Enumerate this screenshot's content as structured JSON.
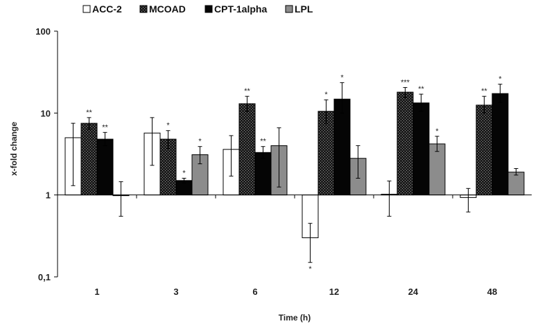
{
  "chart_data": {
    "type": "bar",
    "xlabel": "Time (h)",
    "ylabel": "x-fold change",
    "yscale": "log",
    "ylim": [
      0.1,
      100
    ],
    "yticks": [
      "0,1",
      "1",
      "10",
      "100"
    ],
    "categories": [
      "1",
      "3",
      "6",
      "12",
      "24",
      "48"
    ],
    "legend_position": "top-left",
    "colors": {
      "ACC-2": "#ffffff",
      "MCOAD": "#262626",
      "CPT-1alpha": "#050505",
      "LPL": "#8c8c8c"
    },
    "series": [
      {
        "name": "ACC-2",
        "values": [
          5.0,
          5.7,
          3.6,
          0.3,
          1.02,
          0.93
        ],
        "err_low": [
          1.3,
          2.3,
          1.7,
          0.15,
          0.55,
          0.62
        ],
        "err_high": [
          7.5,
          8.8,
          5.3,
          0.45,
          1.48,
          1.2
        ],
        "stars": [
          "",
          "",
          "",
          "*",
          "",
          ""
        ]
      },
      {
        "name": "MCOAD",
        "values": [
          7.5,
          4.8,
          13.0,
          10.5,
          18.0,
          12.5
        ],
        "err_low": [
          6.3,
          3.7,
          10.5,
          7.5,
          15.5,
          10.0
        ],
        "err_high": [
          8.8,
          6.1,
          16.0,
          14.5,
          20.5,
          16.0
        ],
        "stars": [
          "**",
          "*",
          "**",
          "*",
          "***",
          "**"
        ]
      },
      {
        "name": "CPT-1alpha",
        "values": [
          4.8,
          1.5,
          3.3,
          14.8,
          13.3,
          17.3
        ],
        "err_low": [
          4.0,
          1.4,
          2.8,
          10.0,
          10.5,
          13.5
        ],
        "err_high": [
          5.8,
          1.6,
          3.9,
          23.5,
          17.0,
          22.5
        ],
        "stars": [
          "**",
          "*",
          "**",
          "*",
          "**",
          "*"
        ]
      },
      {
        "name": "LPL",
        "values": [
          1.0,
          3.1,
          4.0,
          2.8,
          4.2,
          1.9
        ],
        "err_low": [
          0.55,
          2.4,
          1.25,
          1.6,
          3.4,
          1.75
        ],
        "err_high": [
          1.45,
          3.9,
          6.6,
          4.0,
          5.2,
          2.1
        ],
        "stars": [
          "",
          "*",
          "",
          "",
          "*",
          ""
        ]
      }
    ]
  }
}
